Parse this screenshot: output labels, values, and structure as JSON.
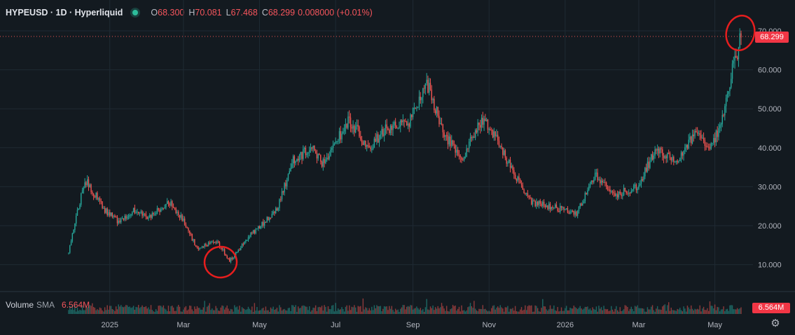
{
  "header": {
    "symbol": "HYPEUSD · 1D · Hyperliquid",
    "open_label": "O",
    "open": "68.300",
    "high_label": "H",
    "high": "70.081",
    "low_label": "L",
    "low": "67.468",
    "close_label": "C",
    "close": "68.299",
    "change": "0.008000 (+0.01%)"
  },
  "colors": {
    "up": "#26a69a",
    "down": "#ef5350",
    "annotation": "#e61e1e",
    "background": "#131a20",
    "grid": "#1f2a33"
  },
  "volume_legend": {
    "label": "Volume",
    "indicator": "SMA",
    "value": "6.564M"
  },
  "last_price_label": "68.299",
  "volume_label": "6.564M",
  "chart_data": {
    "type": "candlestick",
    "title": "HYPEUSD · 1D · Hyperliquid",
    "y_ticks": [
      "10.000",
      "20.000",
      "30.000",
      "40.000",
      "50.000",
      "60.000",
      "70.000"
    ],
    "y_tick_values": [
      10,
      20,
      30,
      40,
      50,
      60,
      70
    ],
    "ylim": [
      0,
      74
    ],
    "x_ticks": [
      "2025",
      "Mar",
      "May",
      "Jul",
      "Sep",
      "Nov",
      "2026",
      "Mar",
      "May"
    ],
    "x_tick_dates": [
      "2025-01-01",
      "2025-03-01",
      "2025-05-01",
      "2025-07-01",
      "2025-09-01",
      "2025-11-01",
      "2026-01-01",
      "2026-03-01",
      "2026-05-01"
    ],
    "date_range": [
      "2024-11-29",
      "2026-05-22"
    ],
    "last_price": 68.299,
    "close_anchors": [
      {
        "date": "2024-11-29",
        "close": 13
      },
      {
        "date": "2024-12-05",
        "close": 22
      },
      {
        "date": "2024-12-12",
        "close": 32
      },
      {
        "date": "2024-12-18",
        "close": 29
      },
      {
        "date": "2024-12-28",
        "close": 24
      },
      {
        "date": "2025-01-08",
        "close": 21
      },
      {
        "date": "2025-01-20",
        "close": 24
      },
      {
        "date": "2025-02-01",
        "close": 22
      },
      {
        "date": "2025-02-18",
        "close": 26
      },
      {
        "date": "2025-02-28",
        "close": 22
      },
      {
        "date": "2025-03-12",
        "close": 14
      },
      {
        "date": "2025-03-28",
        "close": 16
      },
      {
        "date": "2025-04-07",
        "close": 11
      },
      {
        "date": "2025-04-25",
        "close": 18
      },
      {
        "date": "2025-05-15",
        "close": 24
      },
      {
        "date": "2025-05-28",
        "close": 37
      },
      {
        "date": "2025-06-12",
        "close": 40
      },
      {
        "date": "2025-06-20",
        "close": 36
      },
      {
        "date": "2025-07-12",
        "close": 47
      },
      {
        "date": "2025-07-28",
        "close": 40
      },
      {
        "date": "2025-08-10",
        "close": 45
      },
      {
        "date": "2025-08-28",
        "close": 46
      },
      {
        "date": "2025-09-12",
        "close": 57
      },
      {
        "date": "2025-09-25",
        "close": 44
      },
      {
        "date": "2025-10-10",
        "close": 37
      },
      {
        "date": "2025-10-28",
        "close": 48
      },
      {
        "date": "2025-11-20",
        "close": 34
      },
      {
        "date": "2025-12-05",
        "close": 26
      },
      {
        "date": "2025-12-20",
        "close": 25
      },
      {
        "date": "2026-01-10",
        "close": 23
      },
      {
        "date": "2026-01-25",
        "close": 33
      },
      {
        "date": "2026-02-10",
        "close": 28
      },
      {
        "date": "2026-02-28",
        "close": 30
      },
      {
        "date": "2026-03-15",
        "close": 40
      },
      {
        "date": "2026-03-30",
        "close": 36
      },
      {
        "date": "2026-04-15",
        "close": 44
      },
      {
        "date": "2026-04-28",
        "close": 40
      },
      {
        "date": "2026-05-08",
        "close": 48
      },
      {
        "date": "2026-05-15",
        "close": 60
      },
      {
        "date": "2026-05-22",
        "close": 68.3
      }
    ]
  }
}
